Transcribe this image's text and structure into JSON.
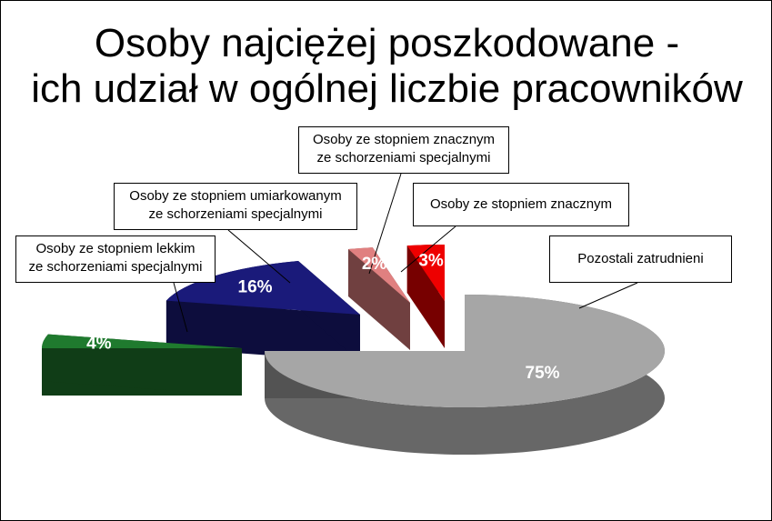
{
  "chart_data": {
    "type": "pie",
    "title_lines": [
      "Osoby najciężej poszkodowane -",
      "ich udział w ogólnej liczbie pracowników"
    ],
    "slices": [
      {
        "label_lines": [
          "Pozostali zatrudnieni"
        ],
        "value": 75,
        "value_label": "75%",
        "color": "#a6a6a6",
        "exploded": false
      },
      {
        "label_lines": [
          "Osoby ze stopniem lekkim",
          "ze schorzeniami specjalnymi"
        ],
        "value": 4,
        "value_label": "4%",
        "color": "#1f7a2e",
        "exploded": true
      },
      {
        "label_lines": [
          "Osoby ze stopniem umiarkowanym",
          "ze schorzeniami specjalnymi"
        ],
        "value": 16,
        "value_label": "16%",
        "color": "#1a1a7a",
        "exploded": true
      },
      {
        "label_lines": [
          "Osoby ze stopniem znacznym",
          "ze schorzeniami specjalnymi"
        ],
        "value": 2,
        "value_label": "2%",
        "color": "#e08080",
        "exploded": true
      },
      {
        "label_lines": [
          "Osoby ze stopniem znacznym"
        ],
        "value": 3,
        "value_label": "3%",
        "color": "#ee0000",
        "exploded": true
      }
    ],
    "style": "3d-exploded-pie"
  }
}
